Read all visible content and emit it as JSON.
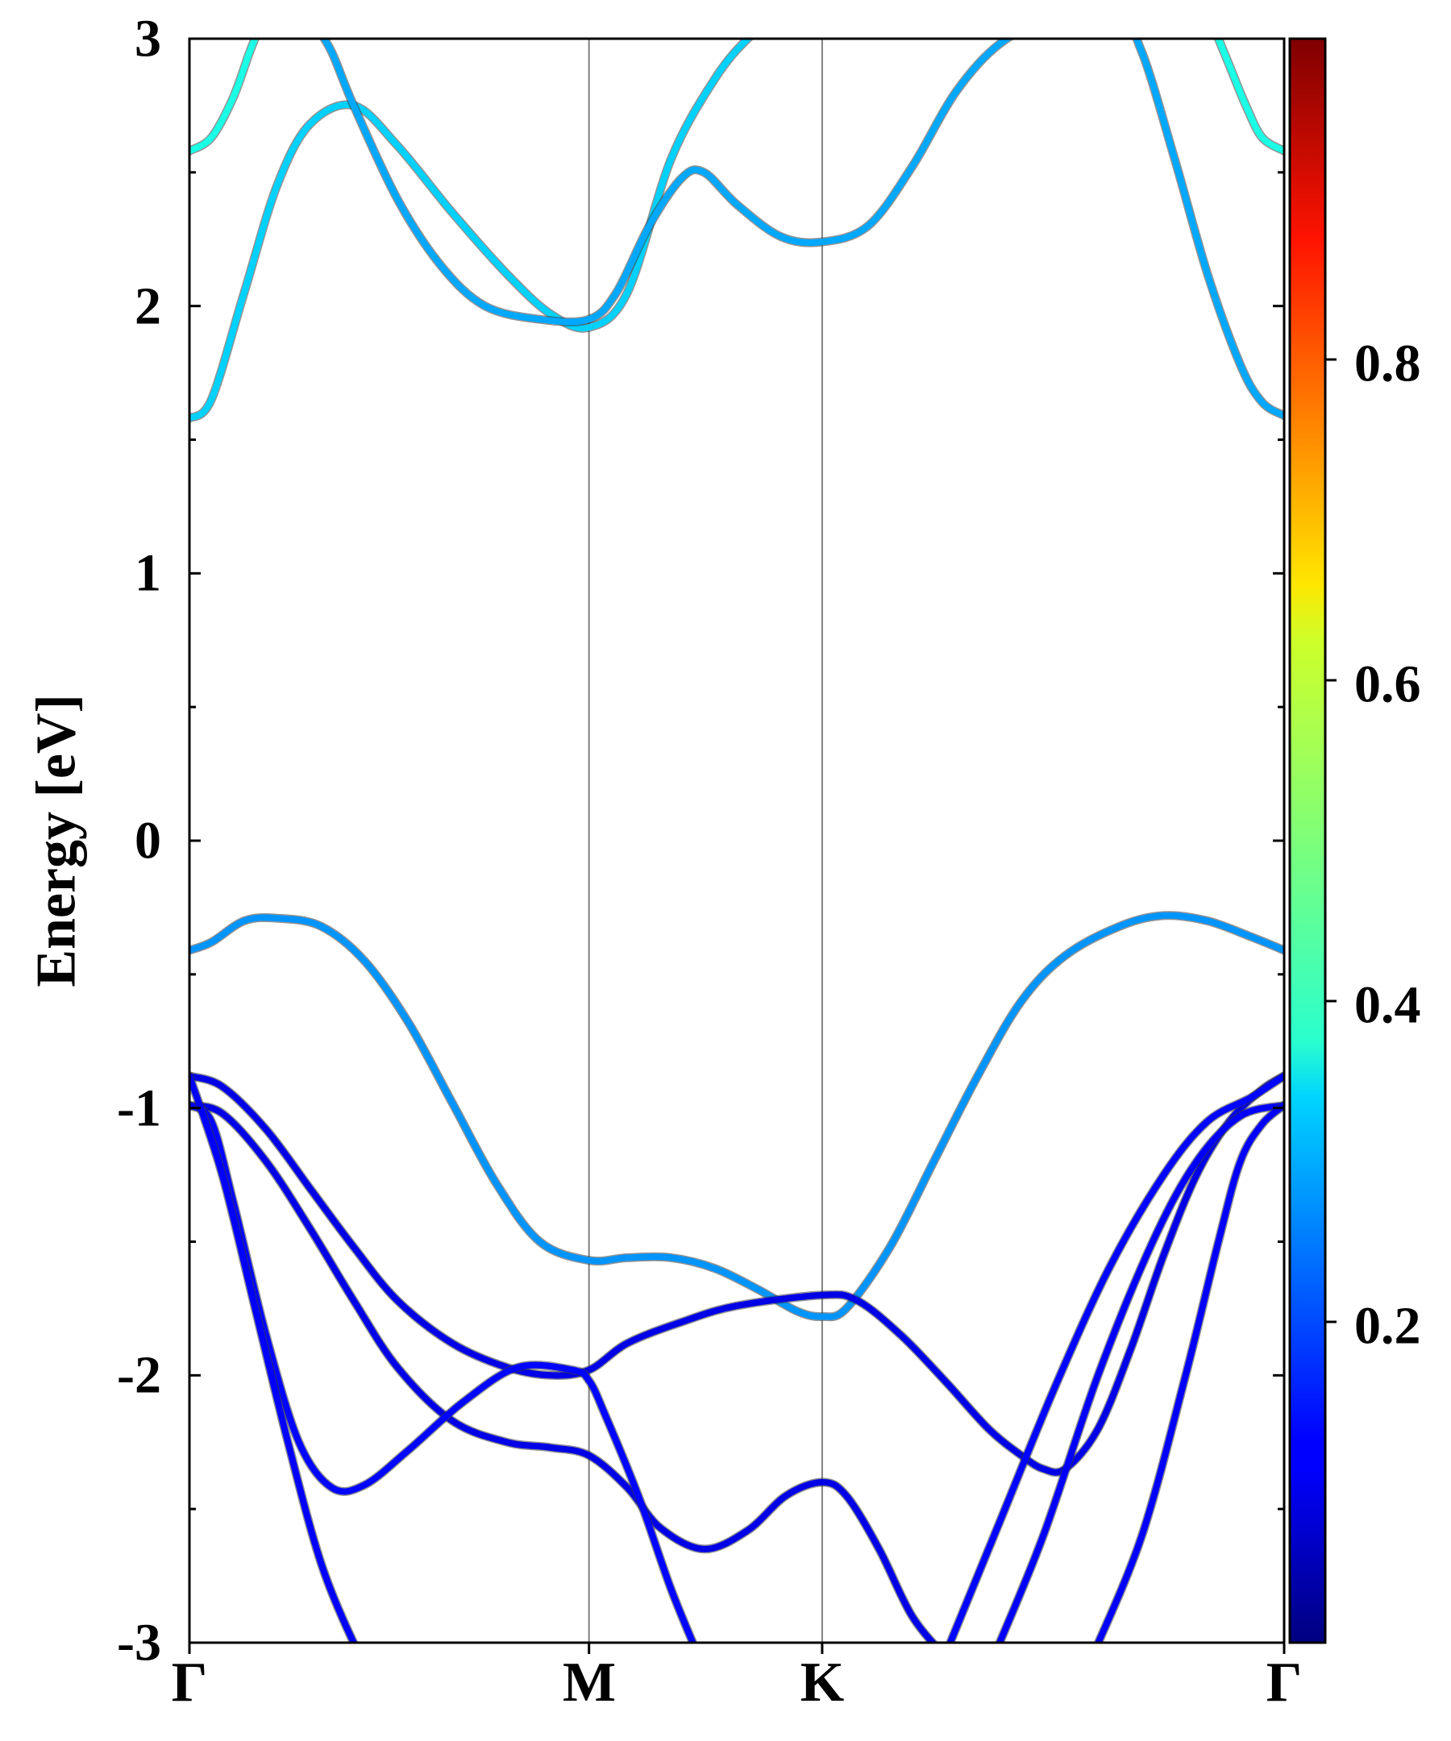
{
  "chart_data": {
    "type": "line",
    "title": "",
    "xlabel": "",
    "ylabel": "Energy [eV]",
    "ylim": [
      -3,
      3
    ],
    "yticks": [
      "3",
      "2",
      "1",
      "0",
      "-1",
      "-2",
      "-3"
    ],
    "ytick_values": [
      3,
      2,
      1,
      0,
      -1,
      -2,
      -3
    ],
    "k_points": [
      {
        "label": "Γ",
        "k": 0.0
      },
      {
        "label": "M",
        "k": 0.365
      },
      {
        "label": "K",
        "k": 0.578
      },
      {
        "label": "Γ",
        "k": 1.0
      }
    ],
    "colorbar": {
      "range": [
        0.0,
        1.0
      ],
      "tick_values": [
        0.2,
        0.4,
        0.6,
        0.8
      ],
      "tick_labels": [
        "0.2",
        "0.4",
        "0.6",
        "0.8"
      ]
    },
    "bands": [
      {
        "name": "conduction-band-3",
        "weight": 0.4,
        "points": [
          [
            0,
            2.58
          ],
          [
            0.02,
            2.63
          ],
          [
            0.04,
            2.78
          ],
          [
            0.055,
            2.95
          ],
          [
            0.065,
            3.05
          ]
        ]
      },
      {
        "name": "conduction-band-3b",
        "weight": 0.4,
        "points": [
          [
            0.935,
            3.05
          ],
          [
            0.95,
            2.9
          ],
          [
            0.965,
            2.75
          ],
          [
            0.98,
            2.63
          ],
          [
            1.0,
            2.58
          ]
        ]
      },
      {
        "name": "conduction-band-2",
        "weight": 0.33,
        "points": [
          [
            0,
            1.58
          ],
          [
            0.02,
            1.65
          ],
          [
            0.05,
            2.05
          ],
          [
            0.08,
            2.45
          ],
          [
            0.11,
            2.68
          ],
          [
            0.15,
            2.75
          ],
          [
            0.19,
            2.6
          ],
          [
            0.24,
            2.35
          ],
          [
            0.29,
            2.12
          ],
          [
            0.33,
            1.97
          ],
          [
            0.365,
            1.92
          ],
          [
            0.4,
            2.05
          ],
          [
            0.44,
            2.55
          ],
          [
            0.48,
            2.85
          ],
          [
            0.51,
            3.0
          ],
          [
            0.53,
            3.05
          ]
        ]
      },
      {
        "name": "conduction-band-1",
        "weight": 0.29,
        "points": [
          [
            0.115,
            3.05
          ],
          [
            0.13,
            2.95
          ],
          [
            0.15,
            2.75
          ],
          [
            0.19,
            2.4
          ],
          [
            0.23,
            2.15
          ],
          [
            0.27,
            2.0
          ],
          [
            0.32,
            1.95
          ],
          [
            0.365,
            1.95
          ],
          [
            0.39,
            2.05
          ],
          [
            0.42,
            2.3
          ],
          [
            0.45,
            2.48
          ],
          [
            0.47,
            2.5
          ],
          [
            0.5,
            2.38
          ],
          [
            0.54,
            2.26
          ],
          [
            0.578,
            2.24
          ],
          [
            0.62,
            2.3
          ],
          [
            0.66,
            2.52
          ],
          [
            0.7,
            2.8
          ],
          [
            0.74,
            2.98
          ],
          [
            0.78,
            3.05
          ],
          [
            0.85,
            3.05
          ],
          [
            0.87,
            2.95
          ],
          [
            0.9,
            2.55
          ],
          [
            0.93,
            2.12
          ],
          [
            0.96,
            1.78
          ],
          [
            0.98,
            1.64
          ],
          [
            1.0,
            1.59
          ]
        ]
      },
      {
        "name": "valence-band-1",
        "weight": 0.27,
        "points": [
          [
            0,
            -0.41
          ],
          [
            0.02,
            -0.38
          ],
          [
            0.05,
            -0.3
          ],
          [
            0.08,
            -0.29
          ],
          [
            0.12,
            -0.32
          ],
          [
            0.16,
            -0.45
          ],
          [
            0.2,
            -0.68
          ],
          [
            0.24,
            -0.98
          ],
          [
            0.28,
            -1.28
          ],
          [
            0.32,
            -1.5
          ],
          [
            0.365,
            -1.57
          ],
          [
            0.4,
            -1.56
          ],
          [
            0.44,
            -1.56
          ],
          [
            0.48,
            -1.6
          ],
          [
            0.52,
            -1.68
          ],
          [
            0.555,
            -1.76
          ],
          [
            0.578,
            -1.78
          ],
          [
            0.6,
            -1.75
          ],
          [
            0.64,
            -1.52
          ],
          [
            0.68,
            -1.2
          ],
          [
            0.72,
            -0.88
          ],
          [
            0.76,
            -0.6
          ],
          [
            0.8,
            -0.43
          ],
          [
            0.85,
            -0.32
          ],
          [
            0.89,
            -0.28
          ],
          [
            0.93,
            -0.3
          ],
          [
            0.97,
            -0.36
          ],
          [
            1.0,
            -0.41
          ]
        ]
      },
      {
        "name": "valence-band-2",
        "weight": 0.1,
        "points": [
          [
            0,
            -0.88
          ],
          [
            0.03,
            -0.92
          ],
          [
            0.07,
            -1.08
          ],
          [
            0.11,
            -1.3
          ],
          [
            0.15,
            -1.52
          ],
          [
            0.19,
            -1.72
          ],
          [
            0.24,
            -1.88
          ],
          [
            0.29,
            -1.97
          ],
          [
            0.33,
            -2.0
          ],
          [
            0.365,
            -1.98
          ],
          [
            0.4,
            -1.88
          ],
          [
            0.45,
            -1.8
          ],
          [
            0.5,
            -1.74
          ],
          [
            0.578,
            -1.7
          ],
          [
            0.61,
            -1.72
          ],
          [
            0.65,
            -1.85
          ],
          [
            0.69,
            -2.02
          ],
          [
            0.73,
            -2.2
          ],
          [
            0.76,
            -2.3
          ],
          [
            0.78,
            -2.35
          ],
          [
            0.8,
            -2.35
          ],
          [
            0.83,
            -2.2
          ],
          [
            0.86,
            -1.9
          ],
          [
            0.89,
            -1.55
          ],
          [
            0.92,
            -1.25
          ],
          [
            0.95,
            -1.05
          ],
          [
            0.98,
            -0.93
          ],
          [
            1.0,
            -0.88
          ]
        ]
      },
      {
        "name": "valence-band-3",
        "weight": 0.1,
        "points": [
          [
            0,
            -0.99
          ],
          [
            0.03,
            -1.02
          ],
          [
            0.07,
            -1.2
          ],
          [
            0.11,
            -1.45
          ],
          [
            0.15,
            -1.72
          ],
          [
            0.19,
            -1.97
          ],
          [
            0.24,
            -2.17
          ],
          [
            0.29,
            -2.25
          ],
          [
            0.33,
            -2.27
          ],
          [
            0.365,
            -2.3
          ],
          [
            0.4,
            -2.42
          ],
          [
            0.43,
            -2.57
          ],
          [
            0.47,
            -2.65
          ],
          [
            0.51,
            -2.58
          ],
          [
            0.545,
            -2.45
          ],
          [
            0.578,
            -2.4
          ],
          [
            0.6,
            -2.45
          ],
          [
            0.63,
            -2.65
          ],
          [
            0.66,
            -2.9
          ],
          [
            0.69,
            -3.05
          ]
        ]
      },
      {
        "name": "valence-band-4",
        "weight": 0.13,
        "points": [
          [
            0,
            -0.99
          ],
          [
            0.02,
            -1.05
          ],
          [
            0.04,
            -1.35
          ],
          [
            0.07,
            -1.85
          ],
          [
            0.1,
            -2.25
          ],
          [
            0.13,
            -2.42
          ],
          [
            0.16,
            -2.41
          ],
          [
            0.2,
            -2.28
          ],
          [
            0.25,
            -2.1
          ],
          [
            0.3,
            -1.97
          ],
          [
            0.35,
            -1.98
          ],
          [
            0.365,
            -2.02
          ],
          [
            0.38,
            -2.15
          ],
          [
            0.41,
            -2.45
          ],
          [
            0.44,
            -2.8
          ],
          [
            0.465,
            -3.05
          ]
        ]
      },
      {
        "name": "valence-band-5",
        "weight": 0.12,
        "points": [
          [
            0,
            -0.88
          ],
          [
            0.03,
            -1.25
          ],
          [
            0.06,
            -1.75
          ],
          [
            0.09,
            -2.25
          ],
          [
            0.12,
            -2.7
          ],
          [
            0.15,
            -3.0
          ],
          [
            0.16,
            -3.05
          ]
        ]
      },
      {
        "name": "valence-band-6",
        "weight": 0.13,
        "points": [
          [
            0.69,
            -3.05
          ],
          [
            0.74,
            -2.55
          ],
          [
            0.79,
            -2.05
          ],
          [
            0.84,
            -1.6
          ],
          [
            0.89,
            -1.25
          ],
          [
            0.93,
            -1.05
          ],
          [
            0.97,
            -0.96
          ],
          [
            1.0,
            -0.88
          ]
        ]
      },
      {
        "name": "valence-band-7",
        "weight": 0.12,
        "points": [
          [
            0.735,
            -3.05
          ],
          [
            0.78,
            -2.6
          ],
          [
            0.83,
            -2.0
          ],
          [
            0.88,
            -1.5
          ],
          [
            0.92,
            -1.2
          ],
          [
            0.96,
            -1.03
          ],
          [
            1.0,
            -0.99
          ]
        ]
      },
      {
        "name": "valence-band-8",
        "weight": 0.12,
        "points": [
          [
            0.825,
            -3.05
          ],
          [
            0.87,
            -2.6
          ],
          [
            0.91,
            -2.0
          ],
          [
            0.94,
            -1.5
          ],
          [
            0.96,
            -1.2
          ],
          [
            0.98,
            -1.06
          ],
          [
            1.0,
            -0.99
          ]
        ]
      }
    ]
  }
}
